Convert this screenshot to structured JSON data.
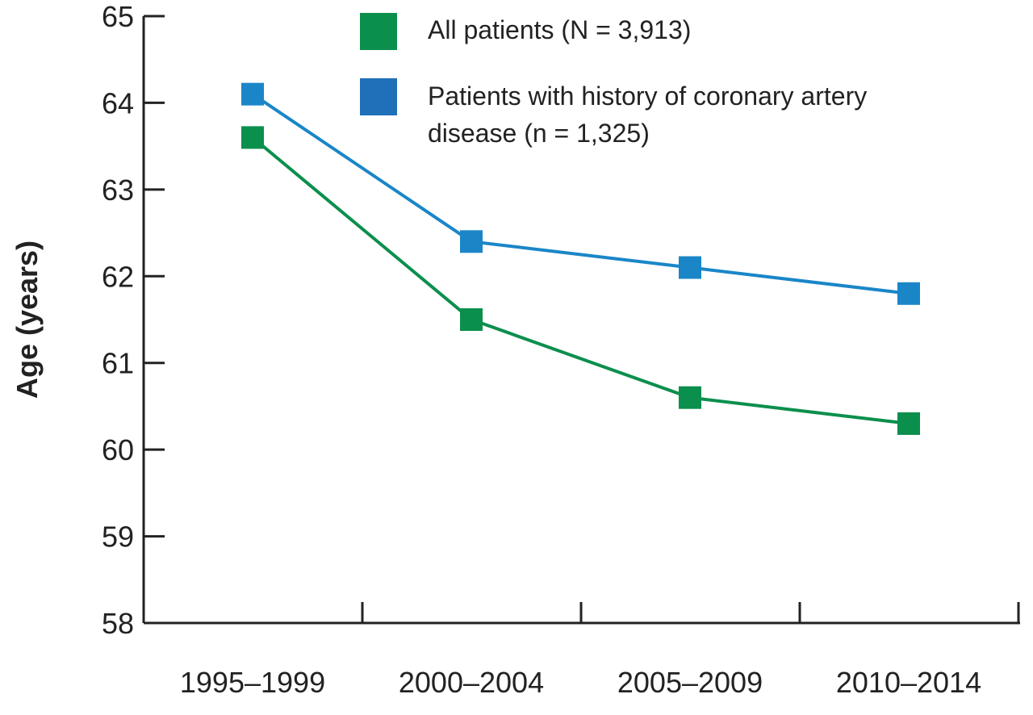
{
  "chart_data": {
    "type": "line",
    "categories": [
      "1995–1999",
      "2000–2004",
      "2005–2009",
      "2010–2014"
    ],
    "ylabel": "Age (years)",
    "xlabel": "",
    "title": "",
    "ylim": [
      58,
      65
    ],
    "yticks": [
      58,
      59,
      60,
      61,
      62,
      63,
      64,
      65
    ],
    "grid": false,
    "legend_position": "top-center",
    "series": [
      {
        "name": "All patients (N = 3,913)",
        "color": "#0b8f4d",
        "marker": "square",
        "values": [
          63.6,
          61.5,
          60.6,
          60.3
        ]
      },
      {
        "name_lines": [
          "Patients with history of coronary artery",
          "disease (n = 1,325)"
        ],
        "color": "#1a86c8",
        "legend_color": "#1f70b8",
        "marker": "square",
        "values": [
          64.1,
          62.4,
          62.1,
          61.8
        ]
      }
    ]
  }
}
